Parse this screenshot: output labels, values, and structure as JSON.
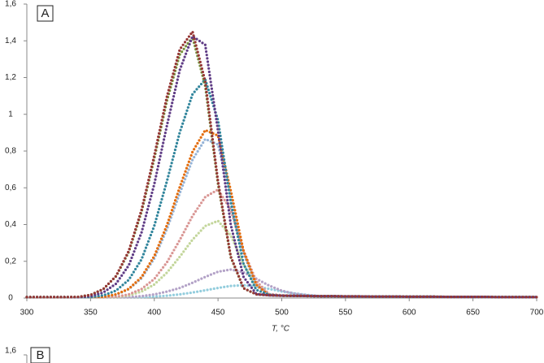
{
  "chart_data": [
    {
      "type": "scatter",
      "panel_label": "A",
      "x_label": "T, °C",
      "x": [
        300,
        310,
        320,
        330,
        340,
        350,
        360,
        370,
        380,
        390,
        400,
        410,
        420,
        430,
        440,
        450,
        460,
        470,
        480,
        490,
        500,
        510,
        520,
        530,
        540,
        550,
        560,
        570,
        580,
        590,
        600,
        610,
        620,
        630,
        640,
        650,
        660,
        670,
        680,
        690,
        700
      ],
      "xlim": [
        300,
        700
      ],
      "xticks": [
        300,
        350,
        400,
        450,
        500,
        550,
        600,
        650,
        700
      ],
      "ylim": [
        0,
        1.6
      ],
      "yticks": [
        0,
        {
          "value": 0.2,
          "label": "0,2"
        },
        {
          "value": 0.4,
          "label": "0,4"
        },
        {
          "value": 0.6,
          "label": "0,6"
        },
        {
          "value": 0.8,
          "label": "0,8"
        },
        1,
        {
          "value": 1.2,
          "label": "1,2"
        },
        {
          "value": 1.4,
          "label": "1,4"
        },
        {
          "value": 1.6,
          "label": "1,6"
        }
      ],
      "series": [
        {
          "color": "#953735",
          "values": [
            0.005,
            0.005,
            0.005,
            0.005,
            0.006,
            0.017,
            0.049,
            0.12,
            0.257,
            0.48,
            0.777,
            1.099,
            1.353,
            1.45,
            1.179,
            0.635,
            0.226,
            0.054,
            0.02,
            0.015,
            0.013,
            0.012,
            0.011,
            0.01,
            0.01,
            0.009,
            0.009,
            0.008,
            0.008,
            0.008,
            0.007,
            0.007,
            0.007,
            0.006,
            0.006,
            0.006,
            0.006,
            0.005,
            0.005,
            0.005,
            0.005
          ]
        },
        {
          "color": "#5f3c85",
          "values": [
            0.005,
            0.005,
            0.005,
            0.005,
            0.005,
            0.01,
            0.03,
            0.078,
            0.178,
            0.357,
            0.621,
            0.941,
            1.241,
            1.425,
            1.378,
            0.911,
            0.399,
            0.115,
            0.022,
            0.015,
            0.013,
            0.012,
            0.011,
            0.01,
            0.01,
            0.009,
            0.009,
            0.008,
            0.008,
            0.008,
            0.007,
            0.007,
            0.007,
            0.006,
            0.006,
            0.006,
            0.006,
            0.005,
            0.005,
            0.005,
            0.005
          ]
        },
        {
          "color": "#77933c",
          "values": [
            0.005,
            0.005,
            0.005,
            0.005,
            0.006,
            0.017,
            0.048,
            0.118,
            0.251,
            0.47,
            0.761,
            1.076,
            1.325,
            1.42,
            1.154,
            0.622,
            0.222,
            0.053,
            0.02,
            0.015,
            0.013,
            0.012,
            0.011,
            0.01,
            0.01,
            0.009,
            0.009,
            0.008,
            0.008,
            0.008,
            0.007,
            0.007,
            0.007,
            0.006,
            0.006,
            0.006,
            0.006,
            0.005,
            0.005,
            0.005,
            0.005
          ]
        },
        {
          "color": "#31859c",
          "values": [
            0.005,
            0.005,
            0.005,
            0.005,
            0.005,
            0.005,
            0.014,
            0.04,
            0.099,
            0.211,
            0.394,
            0.638,
            0.902,
            1.11,
            1.19,
            0.967,
            0.521,
            0.186,
            0.044,
            0.018,
            0.013,
            0.012,
            0.011,
            0.01,
            0.01,
            0.009,
            0.009,
            0.008,
            0.008,
            0.008,
            0.007,
            0.007,
            0.007,
            0.006,
            0.006,
            0.006,
            0.006,
            0.005,
            0.005,
            0.005,
            0.005
          ]
        },
        {
          "color": "#e46c0a",
          "values": [
            0.005,
            0.005,
            0.005,
            0.005,
            0.005,
            0.005,
            0.006,
            0.02,
            0.05,
            0.114,
            0.229,
            0.398,
            0.604,
            0.796,
            0.914,
            0.884,
            0.584,
            0.256,
            0.073,
            0.016,
            0.013,
            0.012,
            0.011,
            0.01,
            0.01,
            0.009,
            0.009,
            0.008,
            0.008,
            0.008,
            0.007,
            0.007,
            0.007,
            0.006,
            0.006,
            0.006,
            0.006,
            0.005,
            0.005,
            0.005,
            0.005
          ]
        },
        {
          "color": "#95b3d7",
          "values": [
            0.005,
            0.005,
            0.005,
            0.005,
            0.005,
            0.005,
            0.006,
            0.018,
            0.048,
            0.108,
            0.216,
            0.377,
            0.571,
            0.753,
            0.865,
            0.836,
            0.553,
            0.242,
            0.07,
            0.015,
            0.013,
            0.012,
            0.011,
            0.01,
            0.01,
            0.009,
            0.009,
            0.008,
            0.008,
            0.008,
            0.007,
            0.007,
            0.007,
            0.006,
            0.006,
            0.006,
            0.006,
            0.005,
            0.005,
            0.005,
            0.005
          ]
        },
        {
          "color": "#d99694",
          "values": [
            0.005,
            0.005,
            0.005,
            0.005,
            0.005,
            0.005,
            0.005,
            0.007,
            0.02,
            0.049,
            0.104,
            0.195,
            0.316,
            0.447,
            0.55,
            0.59,
            0.48,
            0.258,
            0.092,
            0.022,
            0.015,
            0.012,
            0.011,
            0.01,
            0.01,
            0.009,
            0.009,
            0.008,
            0.008,
            0.008,
            0.007,
            0.007,
            0.007,
            0.006,
            0.006,
            0.006,
            0.006,
            0.005,
            0.005,
            0.005,
            0.005
          ]
        },
        {
          "color": "#c3d69b",
          "values": [
            0.005,
            0.005,
            0.005,
            0.005,
            0.005,
            0.005,
            0.005,
            0.005,
            0.014,
            0.035,
            0.074,
            0.139,
            0.225,
            0.318,
            0.392,
            0.42,
            0.341,
            0.184,
            0.066,
            0.016,
            0.012,
            0.011,
            0.011,
            0.01,
            0.01,
            0.009,
            0.009,
            0.008,
            0.008,
            0.008,
            0.007,
            0.007,
            0.007,
            0.006,
            0.006,
            0.006,
            0.006,
            0.005,
            0.005,
            0.005,
            0.005
          ]
        },
        {
          "color": "#b3a2c7",
          "values": [
            0.005,
            0.005,
            0.005,
            0.005,
            0.005,
            0.005,
            0.005,
            0.005,
            0.005,
            0.01,
            0.02,
            0.035,
            0.055,
            0.083,
            0.115,
            0.143,
            0.155,
            0.14,
            0.105,
            0.068,
            0.04,
            0.024,
            0.016,
            0.01,
            0.01,
            0.009,
            0.009,
            0.008,
            0.008,
            0.008,
            0.007,
            0.007,
            0.007,
            0.006,
            0.006,
            0.006,
            0.006,
            0.005,
            0.005,
            0.005,
            0.005
          ]
        },
        {
          "color": "#93cddd",
          "values": [
            0.005,
            0.005,
            0.005,
            0.005,
            0.005,
            0.005,
            0.005,
            0.005,
            0.005,
            0.005,
            0.008,
            0.013,
            0.02,
            0.03,
            0.042,
            0.055,
            0.066,
            0.07,
            0.063,
            0.05,
            0.036,
            0.025,
            0.017,
            0.01,
            0.01,
            0.009,
            0.009,
            0.008,
            0.008,
            0.008,
            0.007,
            0.007,
            0.007,
            0.006,
            0.006,
            0.006,
            0.006,
            0.005,
            0.005,
            0.005,
            0.005
          ]
        }
      ]
    },
    {
      "type": "scatter",
      "panel_label": "B",
      "yticks": [
        {
          "value": 1.6,
          "label": "1,6"
        }
      ]
    }
  ]
}
